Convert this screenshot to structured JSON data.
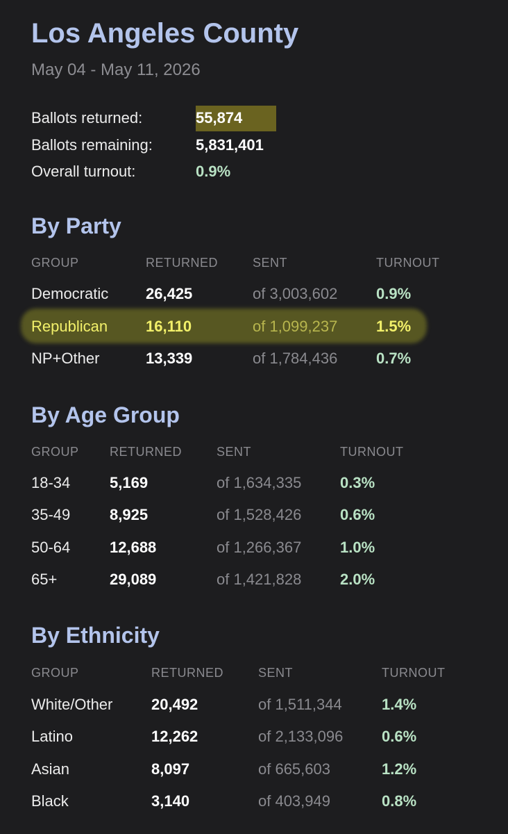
{
  "header": {
    "title": "Los Angeles County",
    "date_range": "May 04 - May 11, 2026"
  },
  "summary": [
    {
      "label": "Ballots returned:",
      "value": "55,874"
    },
    {
      "label": "Ballots remaining:",
      "value": "5,831,401"
    },
    {
      "label": "Overall turnout:",
      "value": "0.9%"
    }
  ],
  "sections": [
    {
      "title": "By Party",
      "columns": [
        "GROUP",
        "RETURNED",
        "SENT",
        "TURNOUT"
      ],
      "rows": [
        [
          "Democratic",
          "26,425",
          "of 3,003,602",
          "0.9%"
        ],
        [
          "Republican",
          "16,110",
          "of 1,099,237",
          "1.5%"
        ],
        [
          "NP+Other",
          "13,339",
          "of 1,784,436",
          "0.7%"
        ]
      ]
    },
    {
      "title": "By Age Group",
      "columns": [
        "GROUP",
        "RETURNED",
        "SENT",
        "TURNOUT"
      ],
      "rows": [
        [
          "18-34",
          "5,169",
          "of 1,634,335",
          "0.3%"
        ],
        [
          "35-49",
          "8,925",
          "of 1,528,426",
          "0.6%"
        ],
        [
          "50-64",
          "12,688",
          "of 1,266,367",
          "1.0%"
        ],
        [
          "65+",
          "29,089",
          "of 1,421,828",
          "2.0%"
        ]
      ]
    },
    {
      "title": "By Ethnicity",
      "columns": [
        "GROUP",
        "RETURNED",
        "SENT",
        "TURNOUT"
      ],
      "rows": [
        [
          "White/Other",
          "20,492",
          "of 1,511,344",
          "1.4%"
        ],
        [
          "Latino",
          "12,262",
          "of 2,133,096",
          "0.6%"
        ],
        [
          "Asian",
          "8,097",
          "of 665,603",
          "1.2%"
        ],
        [
          "Black",
          "3,140",
          "of 403,949",
          "0.8%"
        ]
      ]
    }
  ]
}
